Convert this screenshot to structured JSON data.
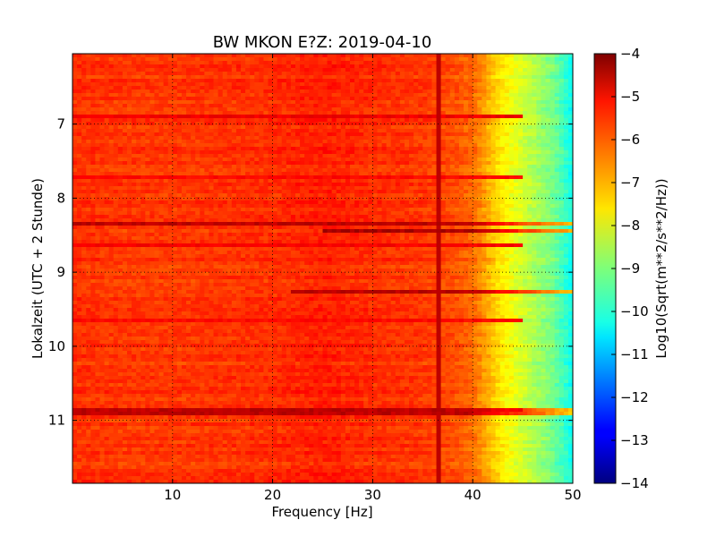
{
  "chart_data": {
    "type": "heatmap",
    "title": "BW MKON E?Z: 2019-04-10",
    "xlabel": "Frequency [Hz]",
    "ylabel": "Lokalzeit (UTC + 2 Stunde)",
    "xlim": [
      0,
      50
    ],
    "ylim": [
      11.85,
      6.05
    ],
    "x_ticks": [
      10,
      20,
      30,
      40,
      50
    ],
    "x_tick_labels": [
      "10",
      "20",
      "30",
      "40",
      "50"
    ],
    "y_ticks": [
      7,
      8,
      9,
      10,
      11
    ],
    "y_tick_labels": [
      "7",
      "8",
      "9",
      "10",
      "11"
    ],
    "y_inverted": true,
    "grid": true,
    "grid_style": "dotted",
    "colorbar": {
      "label": "Log10(Sqrt(m**2/s**2/Hz))",
      "range": [
        -14,
        -4
      ],
      "ticks": [
        -4,
        -5,
        -6,
        -7,
        -8,
        -9,
        -10,
        -11,
        -12,
        -13,
        -14
      ],
      "tick_labels": [
        "−4",
        "−5",
        "−6",
        "−7",
        "−8",
        "−9",
        "−10",
        "−11",
        "−12",
        "−13",
        "−14"
      ],
      "colormap": "jet"
    },
    "base_level_profile": {
      "frequency": [
        0,
        5,
        10,
        20,
        25,
        30,
        35,
        38,
        40,
        41,
        42,
        43,
        44,
        45,
        46,
        47,
        48,
        49,
        50
      ],
      "level": [
        -5.7,
        -5.8,
        -5.8,
        -5.7,
        -5.55,
        -5.7,
        -5.8,
        -6.0,
        -6.3,
        -6.7,
        -7.2,
        -7.6,
        -7.9,
        -8.2,
        -8.5,
        -8.8,
        -9.1,
        -9.6,
        -10.2
      ]
    },
    "spectral_line": {
      "frequency_hz": 36.5,
      "level": -4.6
    },
    "strong_time_bands": [
      {
        "time": 8.35,
        "level": -4.6,
        "f_start": 0,
        "f_end": 50
      },
      {
        "time": 8.45,
        "level": -4.4,
        "f_start": 25,
        "f_end": 50
      },
      {
        "time": 9.28,
        "level": -4.6,
        "f_start": 22,
        "f_end": 50
      },
      {
        "time": 10.88,
        "level": -4.6,
        "f_start": 0,
        "f_end": 50
      }
    ],
    "weak_time_bands": [
      {
        "time": 6.88,
        "level": -5.1
      },
      {
        "time": 7.7,
        "level": -5.3
      },
      {
        "time": 8.65,
        "level": -5.2
      },
      {
        "time": 9.65,
        "level": -5.3
      },
      {
        "time": 10.85,
        "level": -5.2
      }
    ]
  }
}
